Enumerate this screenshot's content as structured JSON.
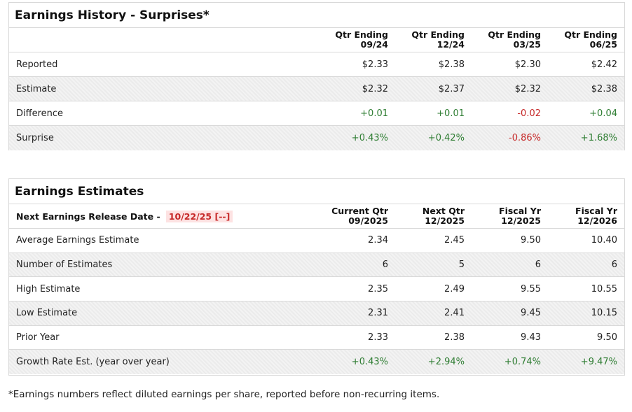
{
  "history": {
    "title": "Earnings History - Surprises*",
    "columns": [
      {
        "line1": "Qtr Ending",
        "line2": "09/24"
      },
      {
        "line1": "Qtr Ending",
        "line2": "12/24"
      },
      {
        "line1": "Qtr Ending",
        "line2": "03/25"
      },
      {
        "line1": "Qtr Ending",
        "line2": "06/25"
      }
    ],
    "rows": [
      {
        "label": "Reported",
        "values": [
          {
            "v": "$2.33",
            "s": ""
          },
          {
            "v": "$2.38",
            "s": ""
          },
          {
            "v": "$2.30",
            "s": ""
          },
          {
            "v": "$2.42",
            "s": ""
          }
        ]
      },
      {
        "label": "Estimate",
        "values": [
          {
            "v": "$2.32",
            "s": ""
          },
          {
            "v": "$2.37",
            "s": ""
          },
          {
            "v": "$2.32",
            "s": ""
          },
          {
            "v": "$2.38",
            "s": ""
          }
        ]
      },
      {
        "label": "Difference",
        "values": [
          {
            "v": "+0.01",
            "s": "pos"
          },
          {
            "v": "+0.01",
            "s": "pos"
          },
          {
            "v": "-0.02",
            "s": "neg"
          },
          {
            "v": "+0.04",
            "s": "pos"
          }
        ]
      },
      {
        "label": "Surprise",
        "values": [
          {
            "v": "+0.43%",
            "s": "pos"
          },
          {
            "v": "+0.42%",
            "s": "pos"
          },
          {
            "v": "-0.86%",
            "s": "neg"
          },
          {
            "v": "+1.68%",
            "s": "pos"
          }
        ]
      }
    ]
  },
  "estimates": {
    "title": "Earnings Estimates",
    "release_label": "Next Earnings Release Date -",
    "release_date": "10/22/25 [--]",
    "columns": [
      {
        "line1": "Current Qtr",
        "line2": "09/2025"
      },
      {
        "line1": "Next Qtr",
        "line2": "12/2025"
      },
      {
        "line1": "Fiscal Yr",
        "line2": "12/2025"
      },
      {
        "line1": "Fiscal Yr",
        "line2": "12/2026"
      }
    ],
    "rows": [
      {
        "label": "Average Earnings Estimate",
        "values": [
          {
            "v": "2.34",
            "s": ""
          },
          {
            "v": "2.45",
            "s": ""
          },
          {
            "v": "9.50",
            "s": ""
          },
          {
            "v": "10.40",
            "s": ""
          }
        ]
      },
      {
        "label": "Number of Estimates",
        "values": [
          {
            "v": "6",
            "s": ""
          },
          {
            "v": "5",
            "s": ""
          },
          {
            "v": "6",
            "s": ""
          },
          {
            "v": "6",
            "s": ""
          }
        ]
      },
      {
        "label": "High Estimate",
        "values": [
          {
            "v": "2.35",
            "s": ""
          },
          {
            "v": "2.49",
            "s": ""
          },
          {
            "v": "9.55",
            "s": ""
          },
          {
            "v": "10.55",
            "s": ""
          }
        ]
      },
      {
        "label": "Low Estimate",
        "values": [
          {
            "v": "2.31",
            "s": ""
          },
          {
            "v": "2.41",
            "s": ""
          },
          {
            "v": "9.45",
            "s": ""
          },
          {
            "v": "10.15",
            "s": ""
          }
        ]
      },
      {
        "label": "Prior Year",
        "values": [
          {
            "v": "2.33",
            "s": ""
          },
          {
            "v": "2.38",
            "s": ""
          },
          {
            "v": "9.43",
            "s": ""
          },
          {
            "v": "9.50",
            "s": ""
          }
        ]
      },
      {
        "label": "Growth Rate Est. (year over year)",
        "values": [
          {
            "v": "+0.43%",
            "s": "pos"
          },
          {
            "v": "+2.94%",
            "s": "pos"
          },
          {
            "v": "+0.74%",
            "s": "pos"
          },
          {
            "v": "+9.47%",
            "s": "pos"
          }
        ]
      }
    ]
  },
  "footnote": "*Earnings numbers reflect diluted earnings per share, reported before non-recurring items.",
  "colors": {
    "positive": "#2e7d32",
    "negative": "#c62828",
    "release_badge_bg": "#fde2e2"
  }
}
